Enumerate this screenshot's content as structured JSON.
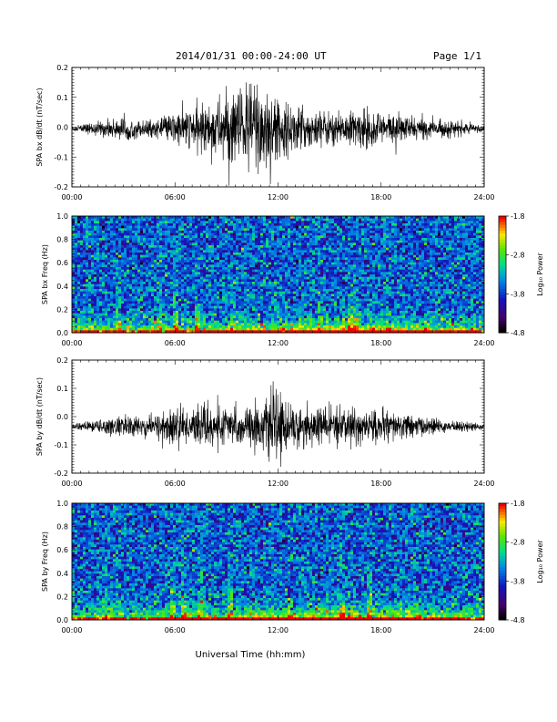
{
  "header": {
    "title": "2014/01/31  00:00-24:00 UT",
    "page": "Page 1/1"
  },
  "xlabel": "Universal Time (hh:mm)",
  "colors": {
    "line": "#000000",
    "frame": "#000000"
  },
  "chart_data": [
    {
      "type": "line",
      "ylabel": "SPA bx dB/dt (nT/sec)",
      "xlim": [
        "00:00",
        "24:00"
      ],
      "xticks": [
        "00:00",
        "06:00",
        "12:00",
        "18:00",
        "24:00"
      ],
      "ylim": [
        -0.2,
        0.2
      ],
      "yticks": [
        "-0.2",
        "-0.1",
        "0.0",
        "0.1",
        "0.2"
      ],
      "envelope": {
        "hours": [
          0,
          1,
          2,
          3,
          4,
          5,
          6,
          7,
          8,
          9,
          10,
          11,
          12,
          13,
          14,
          15,
          16,
          17,
          18,
          19,
          20,
          21,
          22,
          23,
          24
        ],
        "amplitude": [
          0.01,
          0.02,
          0.03,
          0.04,
          0.03,
          0.03,
          0.06,
          0.07,
          0.09,
          0.12,
          0.16,
          0.2,
          0.1,
          0.08,
          0.07,
          0.06,
          0.06,
          0.07,
          0.06,
          0.05,
          0.04,
          0.03,
          0.03,
          0.02,
          0.01
        ]
      }
    },
    {
      "type": "heatmap",
      "ylabel": "SPA bx Freq (Hz)",
      "xlim": [
        "00:00",
        "24:00"
      ],
      "xticks": [
        "00:00",
        "06:00",
        "12:00",
        "18:00",
        "24:00"
      ],
      "ylim": [
        0.0,
        1.0
      ],
      "yticks": [
        "0.0",
        "0.2",
        "0.4",
        "0.6",
        "0.8",
        "1.0"
      ],
      "colorbar": {
        "label": "Log₁₀ Power",
        "min": -4.8,
        "max": -1.8,
        "ticks": [
          "-1.8",
          "-2.8",
          "-3.8",
          "-4.8"
        ]
      }
    },
    {
      "type": "line",
      "ylabel": "SPA by dB/dt (nT/sec)",
      "xlim": [
        "00:00",
        "24:00"
      ],
      "xticks": [
        "00:00",
        "06:00",
        "12:00",
        "18:00",
        "24:00"
      ],
      "ylim": [
        -0.2,
        0.2
      ],
      "yticks": [
        "-0.2",
        "-0.1",
        "0.0",
        "0.1",
        "0.2"
      ],
      "envelope": {
        "hours": [
          0,
          1,
          2,
          3,
          4,
          5,
          6,
          7,
          8,
          9,
          10,
          11,
          12,
          13,
          14,
          15,
          16,
          17,
          18,
          19,
          20,
          21,
          22,
          23,
          24
        ],
        "amplitude": [
          0.01,
          0.02,
          0.03,
          0.04,
          0.04,
          0.05,
          0.07,
          0.06,
          0.08,
          0.07,
          0.07,
          0.09,
          0.12,
          0.08,
          0.07,
          0.07,
          0.07,
          0.06,
          0.06,
          0.05,
          0.04,
          0.03,
          0.02,
          0.02,
          0.01
        ]
      }
    },
    {
      "type": "heatmap",
      "ylabel": "SPA by Freq (Hz)",
      "xlim": [
        "00:00",
        "24:00"
      ],
      "xticks": [
        "00:00",
        "06:00",
        "12:00",
        "18:00",
        "24:00"
      ],
      "ylim": [
        0.0,
        1.0
      ],
      "yticks": [
        "0.0",
        "0.2",
        "0.4",
        "0.6",
        "0.8",
        "1.0"
      ],
      "colorbar": {
        "label": "Log₁₀ Power",
        "min": -4.8,
        "max": -1.8,
        "ticks": [
          "-1.8",
          "-2.8",
          "-3.8",
          "-4.8"
        ]
      }
    }
  ]
}
